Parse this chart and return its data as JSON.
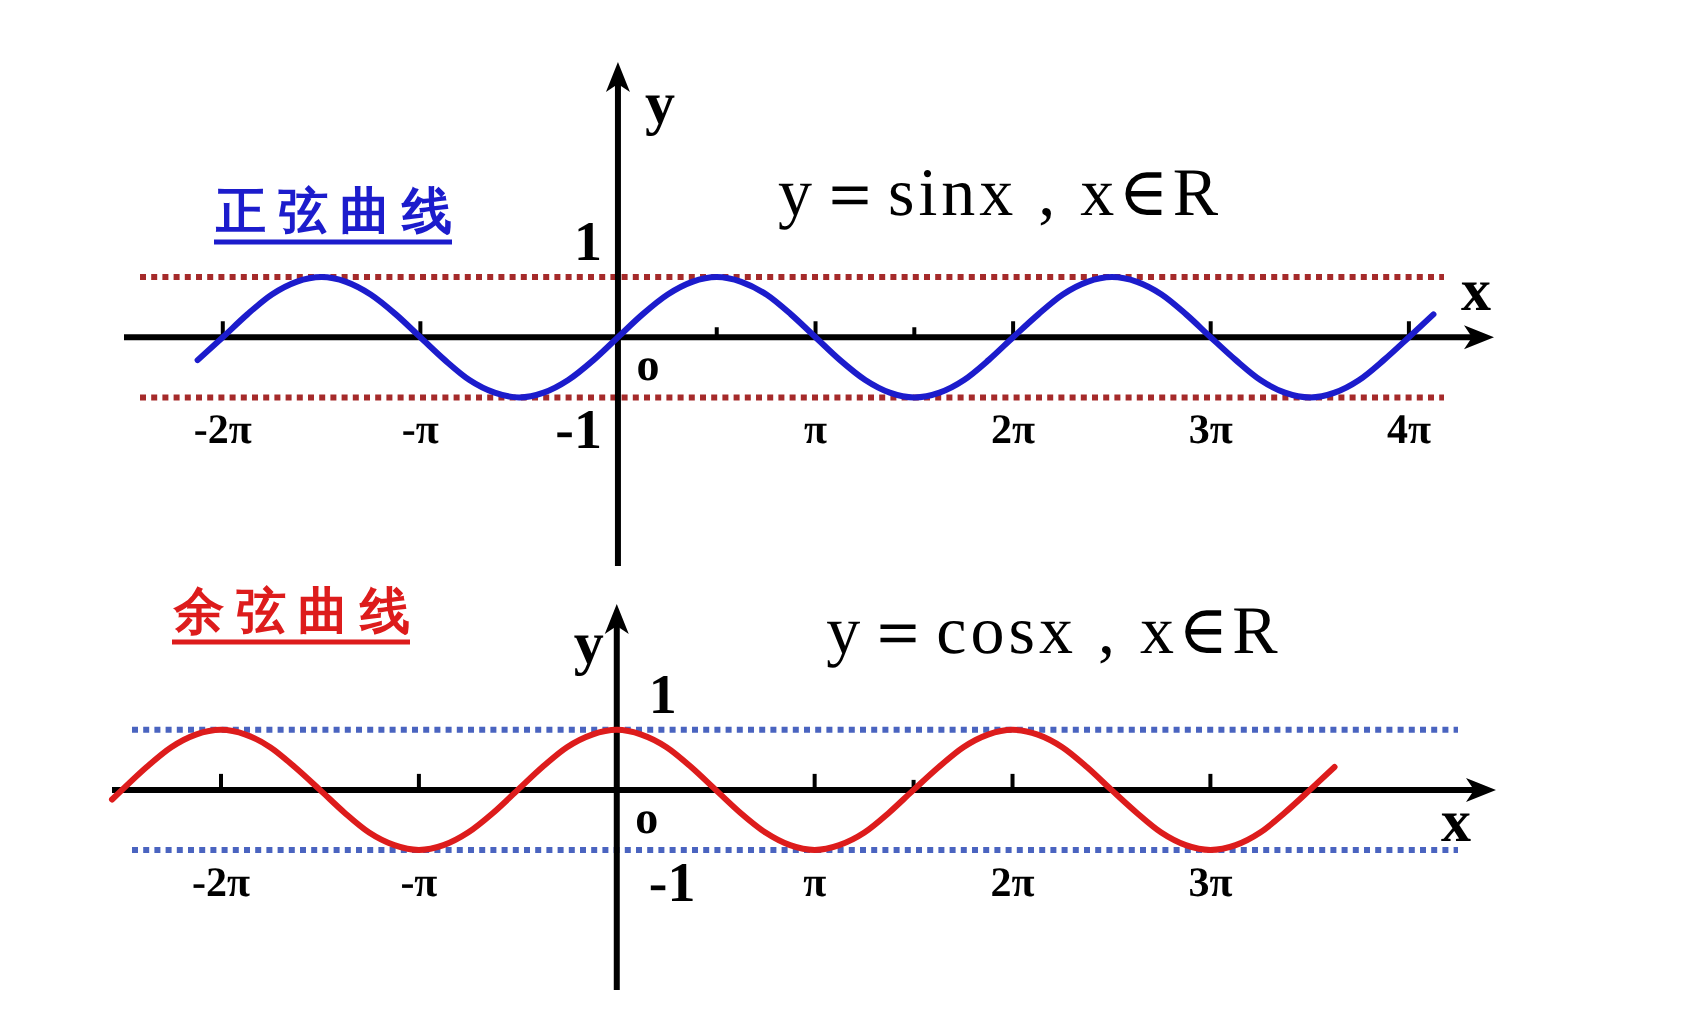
{
  "chart_data": [
    {
      "type": "line",
      "title": "正弦曲线",
      "subtitle": "y＝sinx , x∈R",
      "xlabel": "x",
      "ylabel": "y",
      "xlim": [
        -7.85,
        13.7
      ],
      "ylim": [
        -3.8,
        4.34
      ],
      "xticks": [
        {
          "value": -6.28,
          "label": "-2π"
        },
        {
          "value": -3.14,
          "label": "-π"
        },
        {
          "value": 1.57,
          "label": null
        },
        {
          "value": 3.14,
          "label": "π"
        },
        {
          "value": 4.71,
          "label": null
        },
        {
          "value": 6.28,
          "label": "2π"
        },
        {
          "value": 9.42,
          "label": "3π"
        },
        {
          "value": 12.57,
          "label": "4π"
        }
      ],
      "ref_lines": [
        {
          "axis": "y",
          "value": 1,
          "label": "1",
          "color": "#a52a2a",
          "line_style": "dotted"
        },
        {
          "axis": "y",
          "value": -1,
          "label": "-1",
          "color": "#a52a2a",
          "line_style": "dotted"
        }
      ],
      "annotations": [
        "o"
      ],
      "color": "#1c1ccc",
      "x": [
        -6.68,
        -6.28,
        -5.89,
        -5.5,
        -5.11,
        -4.71,
        -4.32,
        -3.93,
        -3.53,
        -3.14,
        -2.75,
        -2.36,
        -1.96,
        -1.57,
        -1.18,
        -0.79,
        -0.39,
        0,
        0.39,
        0.79,
        1.18,
        1.57,
        1.96,
        2.36,
        2.75,
        3.14,
        3.53,
        3.93,
        4.32,
        4.71,
        5.11,
        5.5,
        5.89,
        6.28,
        6.68,
        7.07,
        7.46,
        7.85,
        8.25,
        8.64,
        9.03,
        9.42,
        9.82,
        10.21,
        10.6,
        11.0,
        11.39,
        11.78,
        12.17,
        12.57,
        12.96
      ],
      "values": [
        -0.38,
        0,
        0.38,
        0.71,
        0.92,
        1,
        0.92,
        0.71,
        0.38,
        0,
        -0.38,
        -0.71,
        -0.92,
        -1,
        -0.92,
        -0.71,
        -0.38,
        0,
        0.38,
        0.71,
        0.92,
        1,
        0.92,
        0.71,
        0.38,
        0,
        -0.38,
        -0.71,
        -0.92,
        -1,
        -0.92,
        -0.71,
        -0.38,
        0,
        0.38,
        0.71,
        0.92,
        1,
        0.92,
        0.71,
        0.38,
        0,
        -0.38,
        -0.71,
        -0.92,
        -1,
        -0.92,
        -0.71,
        -0.38,
        0,
        0.38
      ]
    },
    {
      "type": "line",
      "title": "余弦曲线",
      "subtitle": "y＝cosx , x∈R",
      "xlabel": "x",
      "ylabel": "y",
      "xlim": [
        -8.01,
        13.73
      ],
      "ylim": [
        -3.33,
        2.86
      ],
      "xticks": [
        {
          "value": -6.28,
          "label": "-2π"
        },
        {
          "value": -3.14,
          "label": "-π"
        },
        {
          "value": 3.14,
          "label": "π"
        },
        {
          "value": 4.71,
          "label": null
        },
        {
          "value": 6.28,
          "label": "2π"
        },
        {
          "value": 9.42,
          "label": "3π"
        }
      ],
      "ref_lines": [
        {
          "axis": "y",
          "value": 1,
          "label": "1",
          "color": "#4a64c0",
          "line_style": "dotted"
        },
        {
          "axis": "y",
          "value": -1,
          "label": "-1",
          "color": "#4a64c0",
          "line_style": "dotted"
        }
      ],
      "annotations": [
        "o"
      ],
      "color": "#dd1c1c",
      "x": [
        -8.01,
        -7.85,
        -7.46,
        -7.07,
        -6.68,
        -6.28,
        -5.89,
        -5.5,
        -5.11,
        -4.71,
        -4.32,
        -3.93,
        -3.53,
        -3.14,
        -2.75,
        -2.36,
        -1.96,
        -1.57,
        -1.18,
        -0.79,
        -0.39,
        0,
        0.39,
        0.79,
        1.18,
        1.57,
        1.96,
        2.36,
        2.75,
        3.14,
        3.53,
        3.93,
        4.32,
        4.71,
        5.11,
        5.5,
        5.89,
        6.28,
        6.68,
        7.07,
        7.46,
        7.85,
        8.25,
        8.64,
        9.03,
        9.42,
        9.82,
        10.21,
        10.6,
        11.0,
        11.39
      ],
      "values": [
        -0.16,
        0,
        0.38,
        0.71,
        0.92,
        1,
        0.92,
        0.71,
        0.38,
        0,
        -0.38,
        -0.71,
        -0.92,
        -1,
        -0.92,
        -0.71,
        -0.38,
        0,
        0.38,
        0.71,
        0.92,
        1,
        0.92,
        0.71,
        0.38,
        0,
        -0.38,
        -0.71,
        -0.92,
        -1,
        -0.92,
        -0.71,
        -0.38,
        0,
        0.38,
        0.71,
        0.92,
        1,
        0.92,
        0.71,
        0.38,
        0,
        -0.38,
        -0.71,
        -0.92,
        -1,
        -0.92,
        -0.71,
        -0.38,
        0,
        0.38
      ]
    }
  ]
}
